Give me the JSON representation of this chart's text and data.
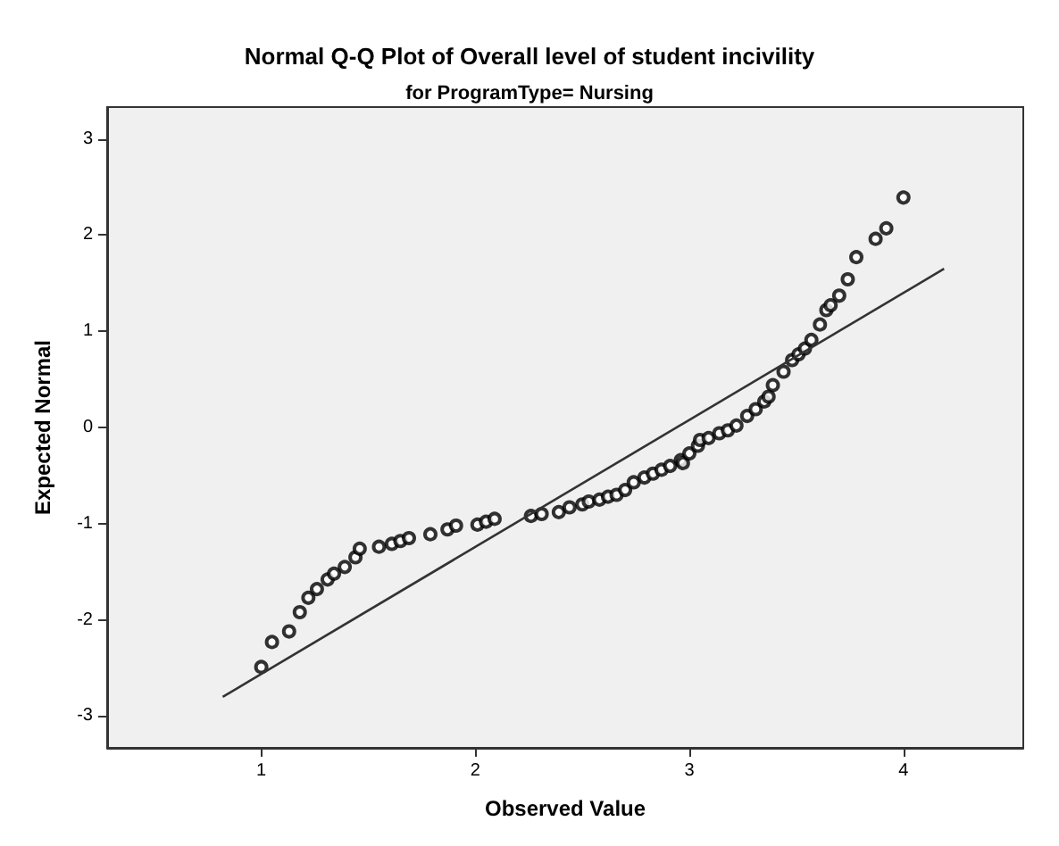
{
  "chart_data": {
    "type": "scatter",
    "title": "Normal Q-Q Plot of Overall level of student incivility",
    "subtitle": "for ProgramType= Nursing",
    "xlabel": "Observed Value",
    "ylabel": "Expected Normal",
    "xlim": [
      0.28,
      4.56
    ],
    "ylim": [
      -3.33,
      3.33
    ],
    "xticks": [
      1,
      2,
      3,
      4
    ],
    "yticks": [
      -3,
      -2,
      -1,
      0,
      1,
      2,
      3
    ],
    "grid": false,
    "marker": "circle",
    "series": [
      {
        "color": "#000000",
        "x": [
          1.0,
          1.05,
          1.13,
          1.18,
          1.22,
          1.26,
          1.31,
          1.34,
          1.39,
          1.44,
          1.46,
          1.55,
          1.61,
          1.65,
          1.69,
          1.79,
          1.87,
          1.91,
          2.01,
          2.05,
          2.09,
          2.26,
          2.31,
          2.39,
          2.44,
          2.5,
          2.53,
          2.58,
          2.62,
          2.66,
          2.7,
          2.74,
          2.79,
          2.83,
          2.87,
          2.91,
          2.96,
          2.97,
          3.0,
          3.04,
          3.05,
          3.09,
          3.14,
          3.18,
          3.22,
          3.27,
          3.31,
          3.35,
          3.37,
          3.39,
          3.44,
          3.48,
          3.51,
          3.54,
          3.57,
          3.61,
          3.64,
          3.66,
          3.7,
          3.74,
          3.78,
          3.87,
          3.92,
          4.0
        ],
        "values": [
          -2.49,
          -2.23,
          -2.12,
          -1.92,
          -1.77,
          -1.68,
          -1.58,
          -1.52,
          -1.45,
          -1.35,
          -1.26,
          -1.24,
          -1.21,
          -1.18,
          -1.15,
          -1.11,
          -1.06,
          -1.02,
          -1.01,
          -0.98,
          -0.95,
          -0.92,
          -0.9,
          -0.88,
          -0.83,
          -0.8,
          -0.77,
          -0.75,
          -0.72,
          -0.7,
          -0.65,
          -0.57,
          -0.52,
          -0.48,
          -0.44,
          -0.4,
          -0.34,
          -0.37,
          -0.27,
          -0.19,
          -0.13,
          -0.11,
          -0.06,
          -0.03,
          0.02,
          0.12,
          0.19,
          0.27,
          0.32,
          0.44,
          0.58,
          0.7,
          0.76,
          0.82,
          0.91,
          1.07,
          1.22,
          1.27,
          1.37,
          1.54,
          1.77,
          1.96,
          2.07,
          2.39
        ]
      },
      {
        "type": "line",
        "color": "#333333",
        "marker": "none",
        "line_style": "solid",
        "x": [
          0.82,
          4.19
        ],
        "values": [
          -2.8,
          1.65
        ]
      }
    ]
  }
}
